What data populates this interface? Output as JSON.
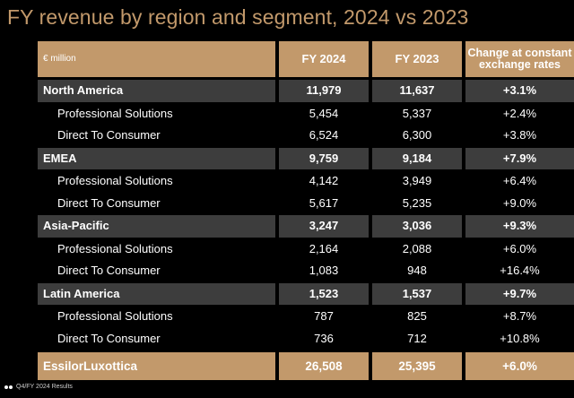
{
  "title": "FY revenue by region and segment, 2024 vs 2023",
  "header": {
    "unit": "€ million",
    "col_fy2024": "FY 2024",
    "col_fy2023": "FY 2023",
    "col_change_line1": "Change at constant",
    "col_change_line2": "exchange rates"
  },
  "rows": [
    {
      "kind": "region",
      "label": "North America",
      "fy2024": "11,979",
      "fy2023": "11,637",
      "change": "+3.1%"
    },
    {
      "kind": "sub",
      "label": "Professional Solutions",
      "fy2024": "5,454",
      "fy2023": "5,337",
      "change": "+2.4%"
    },
    {
      "kind": "sub",
      "label": "Direct To Consumer",
      "fy2024": "6,524",
      "fy2023": "6,300",
      "change": "+3.8%"
    },
    {
      "kind": "region",
      "label": "EMEA",
      "fy2024": "9,759",
      "fy2023": "9,184",
      "change": "+7.9%"
    },
    {
      "kind": "sub",
      "label": "Professional Solutions",
      "fy2024": "4,142",
      "fy2023": "3,949",
      "change": "+6.4%"
    },
    {
      "kind": "sub",
      "label": "Direct To Consumer",
      "fy2024": "5,617",
      "fy2023": "5,235",
      "change": "+9.0%"
    },
    {
      "kind": "region",
      "label": "Asia-Pacific",
      "fy2024": "3,247",
      "fy2023": "3,036",
      "change": "+9.3%"
    },
    {
      "kind": "sub",
      "label": "Professional Solutions",
      "fy2024": "2,164",
      "fy2023": "2,088",
      "change": "+6.0%"
    },
    {
      "kind": "sub",
      "label": "Direct To Consumer",
      "fy2024": "1,083",
      "fy2023": "948",
      "change": "+16.4%"
    },
    {
      "kind": "region",
      "label": "Latin America",
      "fy2024": "1,523",
      "fy2023": "1,537",
      "change": "+9.7%"
    },
    {
      "kind": "sub",
      "label": "Professional Solutions",
      "fy2024": "787",
      "fy2023": "825",
      "change": "+8.7%"
    },
    {
      "kind": "sub",
      "label": "Direct To Consumer",
      "fy2024": "736",
      "fy2023": "712",
      "change": "+10.8%"
    }
  ],
  "total": {
    "label": "EssilorLuxottica",
    "fy2024": "26,508",
    "fy2023": "25,395",
    "change": "+6.0%"
  },
  "footer": {
    "text": "Q4/FY 2024 Results"
  },
  "colors": {
    "accent": "#c2996b",
    "region_band": "#3d3d3d",
    "background": "#000000"
  }
}
